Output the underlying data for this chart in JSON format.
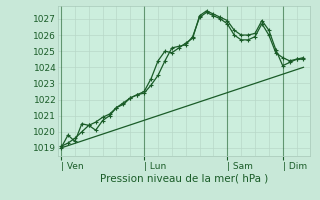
{
  "background_color": "#c8e8d8",
  "plot_bg_color": "#cceedd",
  "grid_color_minor": "#b8d8c8",
  "grid_color_major": "#a8c8b8",
  "line_color": "#1a5c28",
  "title": "Pression niveau de la mer( hPa )",
  "ylabel_ticks": [
    1019,
    1020,
    1021,
    1022,
    1023,
    1024,
    1025,
    1026,
    1027
  ],
  "ylim": [
    1018.5,
    1027.8
  ],
  "day_labels": [
    "| Ven",
    "| Lun",
    "| Sam",
    "| Dim"
  ],
  "day_positions": [
    0,
    12,
    24,
    32
  ],
  "xlim": [
    -0.5,
    36
  ],
  "line1_x": [
    0,
    1,
    2,
    3,
    4,
    5,
    6,
    7,
    8,
    9,
    10,
    11,
    12,
    13,
    14,
    15,
    16,
    17,
    18,
    19,
    20,
    21,
    22,
    23,
    24,
    25,
    26,
    27,
    28,
    29,
    30,
    31,
    32,
    33,
    34,
    35
  ],
  "line1_y": [
    1019.0,
    1019.8,
    1019.4,
    1020.5,
    1020.4,
    1020.1,
    1020.7,
    1021.0,
    1021.5,
    1021.7,
    1022.1,
    1022.3,
    1022.4,
    1022.9,
    1023.5,
    1024.4,
    1025.2,
    1025.3,
    1025.4,
    1025.9,
    1027.1,
    1027.4,
    1027.2,
    1027.0,
    1026.7,
    1026.0,
    1025.7,
    1025.7,
    1025.9,
    1026.7,
    1026.0,
    1024.9,
    1024.6,
    1024.4,
    1024.5,
    1024.5
  ],
  "line2_x": [
    0,
    1,
    2,
    3,
    4,
    5,
    6,
    7,
    8,
    9,
    10,
    11,
    12,
    13,
    14,
    15,
    16,
    17,
    18,
    19,
    20,
    21,
    22,
    23,
    24,
    25,
    26,
    27,
    28,
    29,
    30,
    31,
    32,
    33,
    34,
    35
  ],
  "line2_y": [
    1019.1,
    1019.3,
    1019.6,
    1020.0,
    1020.4,
    1020.6,
    1020.9,
    1021.1,
    1021.5,
    1021.8,
    1022.1,
    1022.3,
    1022.5,
    1023.3,
    1024.4,
    1025.0,
    1024.9,
    1025.2,
    1025.5,
    1025.8,
    1027.2,
    1027.5,
    1027.3,
    1027.1,
    1026.9,
    1026.3,
    1026.0,
    1026.0,
    1026.1,
    1026.9,
    1026.3,
    1025.1,
    1024.1,
    1024.3,
    1024.5,
    1024.6
  ],
  "line3_x": [
    0,
    35
  ],
  "line3_y": [
    1019.0,
    1024.0
  ]
}
